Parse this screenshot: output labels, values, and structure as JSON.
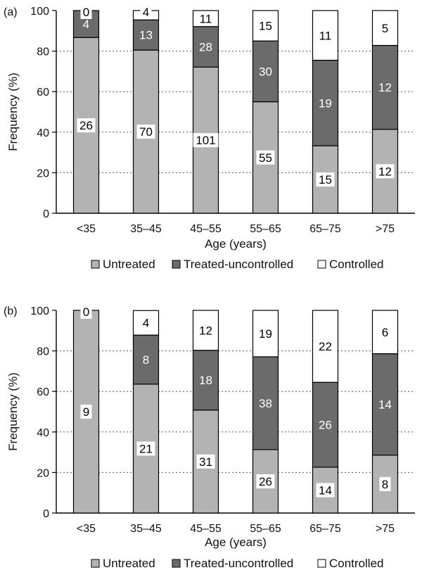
{
  "chart_data": [
    {
      "type": "bar",
      "stacked": true,
      "panel_label": "(a)",
      "categories": [
        "<35",
        "35–45",
        "45–55",
        "55–65",
        "65–75",
        ">75"
      ],
      "xlabel": "Age (years)",
      "ylabel": "Frequency (%)",
      "ylim": [
        0,
        100
      ],
      "yticks": [
        0,
        20,
        40,
        60,
        80,
        100
      ],
      "grid": "horizontal dotted",
      "series": [
        {
          "name": "Untreated",
          "color": "#b3b3b3",
          "counts": [
            26,
            70,
            101,
            55,
            15,
            12
          ],
          "percent": [
            86.7,
            80.5,
            72.1,
            55.0,
            33.3,
            41.4
          ]
        },
        {
          "name": "Treated-uncontrolled",
          "color": "#6b6b6b",
          "counts": [
            4,
            13,
            28,
            30,
            19,
            12
          ],
          "percent": [
            13.3,
            14.9,
            20.0,
            30.0,
            42.2,
            41.4
          ]
        },
        {
          "name": "Controlled",
          "color": "#ffffff",
          "counts": [
            0,
            4,
            11,
            15,
            11,
            5
          ],
          "percent": [
            0.0,
            4.6,
            7.9,
            15.0,
            24.5,
            17.2
          ]
        }
      ],
      "legend": {
        "position": "bottom",
        "items": [
          "Untreated",
          "Treated-uncontrolled",
          "Controlled"
        ]
      }
    },
    {
      "type": "bar",
      "stacked": true,
      "panel_label": "(b)",
      "categories": [
        "<35",
        "35–45",
        "45–55",
        "55–65",
        "65–75",
        ">75"
      ],
      "xlabel": "Age (years)",
      "ylabel": "Frequency (%)",
      "ylim": [
        0,
        100
      ],
      "yticks": [
        0,
        20,
        40,
        60,
        80,
        100
      ],
      "grid": "horizontal dotted",
      "series": [
        {
          "name": "Untreated",
          "color": "#b3b3b3",
          "counts": [
            9,
            21,
            31,
            26,
            14,
            8
          ],
          "percent": [
            100.0,
            63.6,
            50.8,
            31.3,
            22.6,
            28.6
          ]
        },
        {
          "name": "Treated-uncontrolled",
          "color": "#6b6b6b",
          "counts": [
            0,
            8,
            18,
            38,
            26,
            14
          ],
          "percent": [
            0.0,
            24.2,
            29.5,
            45.8,
            41.9,
            50.0
          ]
        },
        {
          "name": "Controlled",
          "color": "#ffffff",
          "counts": [
            0,
            4,
            12,
            19,
            22,
            6
          ],
          "percent": [
            0.0,
            12.1,
            19.7,
            22.9,
            35.5,
            21.4
          ]
        }
      ],
      "legend": {
        "position": "bottom",
        "items": [
          "Untreated",
          "Treated-uncontrolled",
          "Controlled"
        ]
      }
    }
  ]
}
